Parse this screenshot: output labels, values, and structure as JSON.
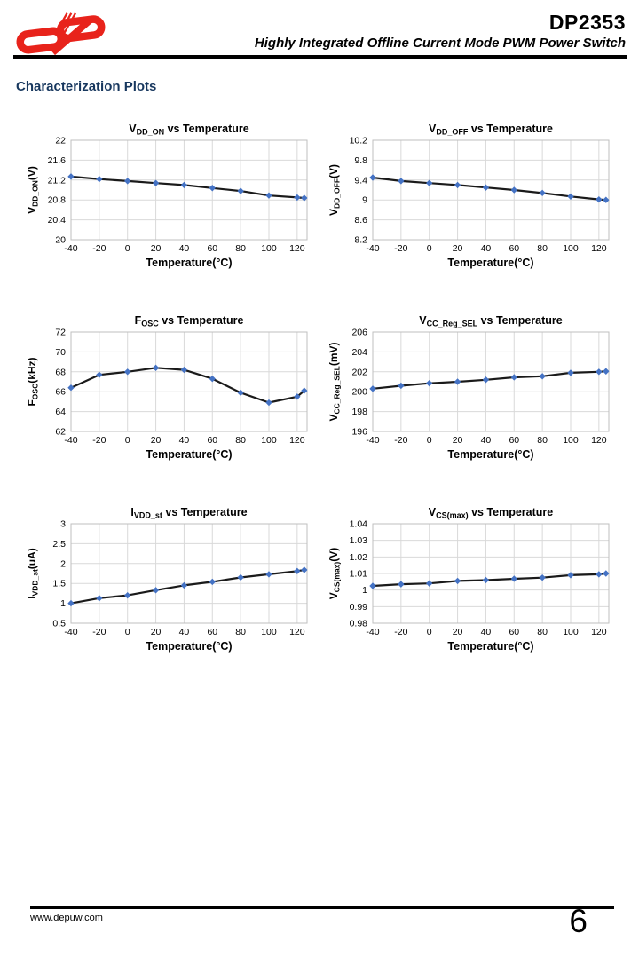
{
  "header": {
    "product": "DP2353",
    "subtitle": "Highly Integrated Offline Current Mode PWM Power Switch"
  },
  "section_title": "Characterization Plots",
  "footer": {
    "website": "www.depuw.com",
    "page_number": "6"
  },
  "colors": {
    "marker": "#4472C4",
    "line": "#1a1a1a",
    "grid": "#d9d9d9",
    "border": "#bfbfbf",
    "section_title": "#17375E",
    "logo_red": "#e8231b"
  },
  "chart_data": [
    {
      "id": "vdd_on",
      "type": "line",
      "title": {
        "base": "V",
        "sub": "DD_ON",
        "rest": " vs Temperature"
      },
      "ylabel": {
        "base": "V",
        "sub": "DD_ON",
        "rest": "(V)"
      },
      "xlabel": "Temperature(°C)",
      "x": [
        -40,
        -20,
        0,
        20,
        40,
        60,
        80,
        100,
        120,
        125
      ],
      "y": [
        21.27,
        21.22,
        21.18,
        21.14,
        21.1,
        21.04,
        20.98,
        20.89,
        20.85,
        20.84
      ],
      "xlim": [
        -40,
        127
      ],
      "ylim": [
        20,
        22
      ],
      "xticks": [
        -40,
        -20,
        0,
        20,
        40,
        60,
        80,
        100,
        120
      ],
      "yticks": [
        20,
        20.4,
        20.8,
        21.2,
        21.6,
        22
      ],
      "grid": true,
      "legend": "none",
      "marker": "diamond"
    },
    {
      "id": "vdd_off",
      "type": "line",
      "title": {
        "base": "V",
        "sub": "DD_OFF",
        "rest": " vs Temperature"
      },
      "ylabel": {
        "base": "V",
        "sub": "DD_OFF",
        "rest": "(V)"
      },
      "xlabel": "Temperature(°C)",
      "x": [
        -40,
        -20,
        0,
        20,
        40,
        60,
        80,
        100,
        120,
        125
      ],
      "y": [
        9.45,
        9.38,
        9.34,
        9.3,
        9.25,
        9.2,
        9.14,
        9.07,
        9.01,
        9.0
      ],
      "xlim": [
        -40,
        127
      ],
      "ylim": [
        8.2,
        10.2
      ],
      "xticks": [
        -40,
        -20,
        0,
        20,
        40,
        60,
        80,
        100,
        120
      ],
      "yticks": [
        8.2,
        8.6,
        9,
        9.4,
        9.8,
        10.2
      ],
      "grid": true,
      "legend": "none",
      "marker": "diamond"
    },
    {
      "id": "fosc",
      "type": "line",
      "title": {
        "base": "F",
        "sub": "OSC",
        "rest": " vs Temperature"
      },
      "ylabel": {
        "base": "F",
        "sub": "OSC",
        "rest": "(kHz)"
      },
      "xlabel": "Temperature(°C)",
      "x": [
        -40,
        -20,
        0,
        20,
        40,
        60,
        80,
        100,
        120,
        125
      ],
      "y": [
        66.4,
        67.7,
        68.0,
        68.4,
        68.2,
        67.3,
        65.9,
        64.9,
        65.5,
        66.1
      ],
      "xlim": [
        -40,
        127
      ],
      "ylim": [
        62,
        72
      ],
      "xticks": [
        -40,
        -20,
        0,
        20,
        40,
        60,
        80,
        100,
        120
      ],
      "yticks": [
        62,
        64,
        66,
        68,
        70,
        72
      ],
      "grid": true,
      "legend": "none",
      "marker": "diamond"
    },
    {
      "id": "vcc_reg_sel",
      "type": "line",
      "title": {
        "base": "V",
        "sub": "CC_Reg_SEL",
        "rest": " vs Temperature"
      },
      "ylabel": {
        "base": "V",
        "sub": "CC_Reg_SEL",
        "rest": "(mV)"
      },
      "xlabel": "Temperature(°C)",
      "x": [
        -40,
        -20,
        0,
        20,
        40,
        60,
        80,
        100,
        120,
        125
      ],
      "y": [
        200.3,
        200.6,
        200.85,
        201.0,
        201.2,
        201.45,
        201.55,
        201.9,
        202.0,
        202.05
      ],
      "xlim": [
        -40,
        127
      ],
      "ylim": [
        196,
        206
      ],
      "xticks": [
        -40,
        -20,
        0,
        20,
        40,
        60,
        80,
        100,
        120
      ],
      "yticks": [
        196,
        198,
        200,
        202,
        204,
        206
      ],
      "grid": true,
      "legend": "none",
      "marker": "diamond"
    },
    {
      "id": "ivdd_st",
      "type": "line",
      "title": {
        "base": "I",
        "sub": "VDD_st",
        "rest": " vs Temperature"
      },
      "ylabel": {
        "base": "I",
        "sub": "VDD_st",
        "rest": "(uA)"
      },
      "xlabel": "Temperature(°C)",
      "x": [
        -40,
        -20,
        0,
        20,
        40,
        60,
        80,
        100,
        120,
        125
      ],
      "y": [
        1.0,
        1.13,
        1.2,
        1.33,
        1.45,
        1.54,
        1.65,
        1.73,
        1.81,
        1.84
      ],
      "xlim": [
        -40,
        127
      ],
      "ylim": [
        0.5,
        3
      ],
      "xticks": [
        -40,
        -20,
        0,
        20,
        40,
        60,
        80,
        100,
        120
      ],
      "yticks": [
        0.5,
        1,
        1.5,
        2,
        2.5,
        3
      ],
      "grid": true,
      "legend": "none",
      "marker": "diamond"
    },
    {
      "id": "vcs_max",
      "type": "line",
      "title": {
        "base": "V",
        "sub": "CS(max)",
        "rest": " vs Temperature"
      },
      "ylabel": {
        "base": "V",
        "sub": "CS(max)",
        "rest": "(V)"
      },
      "xlabel": "Temperature(°C)",
      "x": [
        -40,
        -20,
        0,
        20,
        40,
        60,
        80,
        100,
        120,
        125
      ],
      "y": [
        1.0025,
        1.0035,
        1.004,
        1.0055,
        1.006,
        1.0068,
        1.0075,
        1.009,
        1.0095,
        1.01
      ],
      "xlim": [
        -40,
        127
      ],
      "ylim": [
        0.98,
        1.04
      ],
      "xticks": [
        -40,
        -20,
        0,
        20,
        40,
        60,
        80,
        100,
        120
      ],
      "yticks": [
        0.98,
        0.99,
        1,
        1.01,
        1.02,
        1.03,
        1.04
      ],
      "grid": true,
      "legend": "none",
      "marker": "diamond"
    }
  ]
}
